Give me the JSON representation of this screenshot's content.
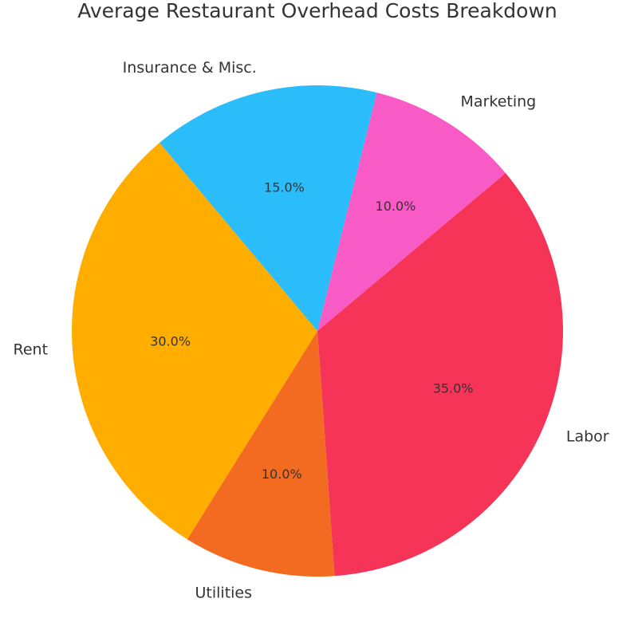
{
  "chart_data": {
    "type": "pie",
    "title": "Average Restaurant Overhead Costs Breakdown",
    "slices": [
      {
        "label": "Labor",
        "value": 35.0,
        "pct_label": "35.0%",
        "color": "#F63458"
      },
      {
        "label": "Utilities",
        "value": 10.0,
        "pct_label": "10.0%",
        "color": "#F36B21"
      },
      {
        "label": "Rent",
        "value": 30.0,
        "pct_label": "30.0%",
        "color": "#FFAE00"
      },
      {
        "label": "Insurance & Misc.",
        "value": 15.0,
        "pct_label": "15.0%",
        "color": "#2BBCFA"
      },
      {
        "label": "Marketing",
        "value": 10.0,
        "pct_label": "10.0%",
        "color": "#F95BC6"
      }
    ],
    "start_angle_deg": 40,
    "direction": "clockwise",
    "legend": "none"
  }
}
